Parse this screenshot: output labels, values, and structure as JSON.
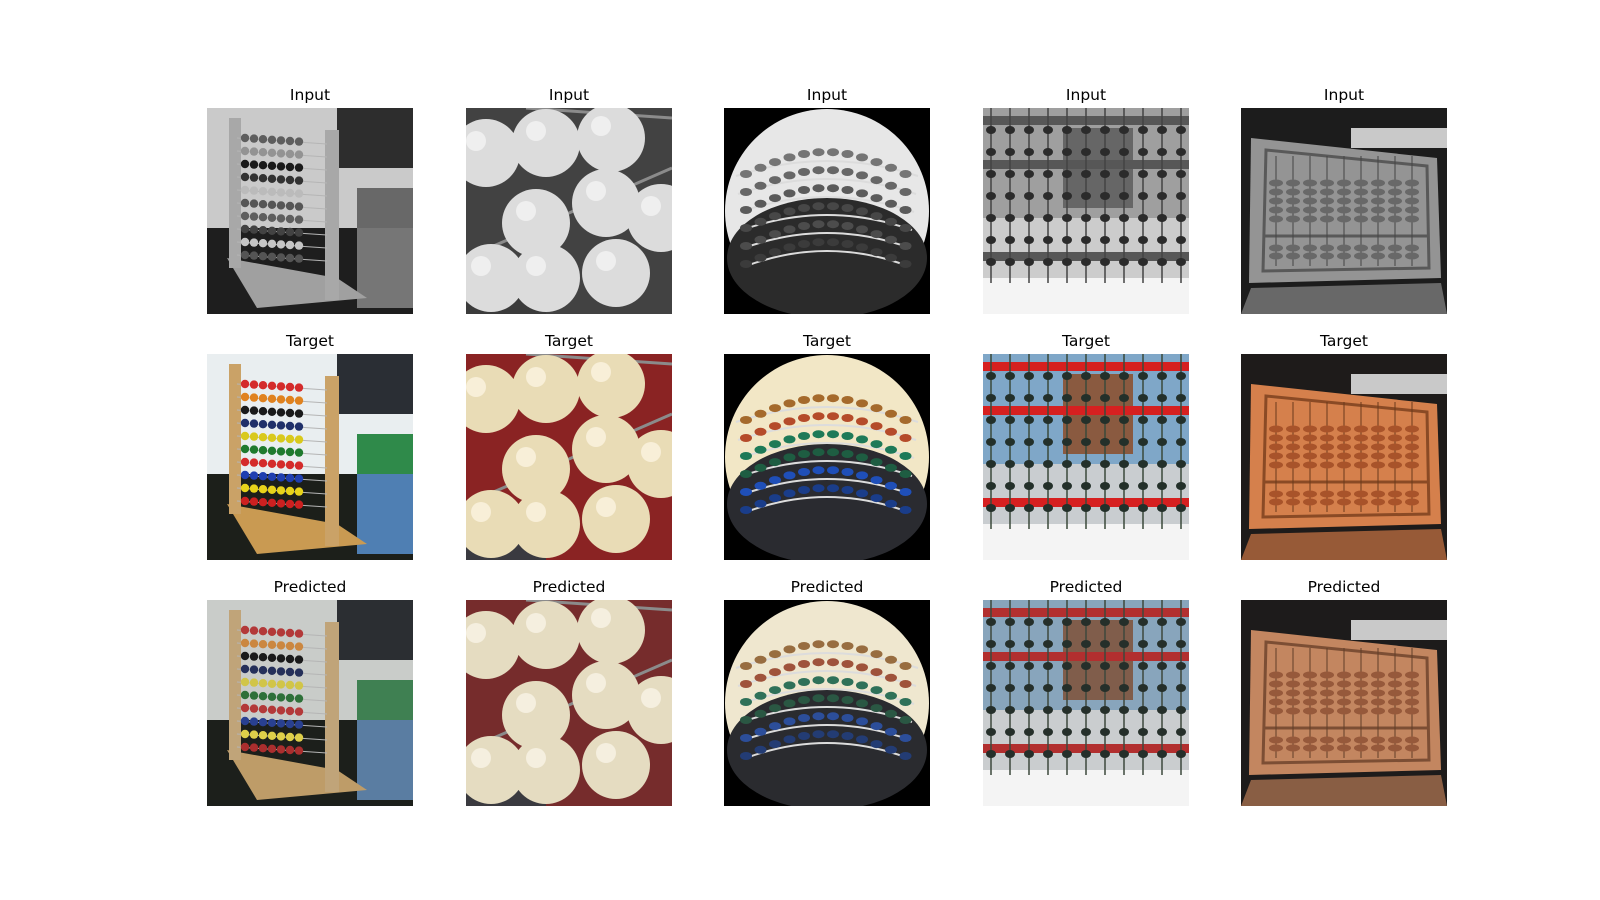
{
  "figure": {
    "rows": [
      {
        "title": "Input",
        "mode": "gray"
      },
      {
        "title": "Target",
        "mode": "color"
      },
      {
        "title": "Predicted",
        "mode": "pred"
      }
    ],
    "columns": [
      {
        "scene": "wooden-abacus-frame"
      },
      {
        "scene": "close-up-beads"
      },
      {
        "scene": "fisheye-abacus"
      },
      {
        "scene": "abacus-gate-red-rails"
      },
      {
        "scene": "orange-tilted-abacus"
      }
    ]
  }
}
